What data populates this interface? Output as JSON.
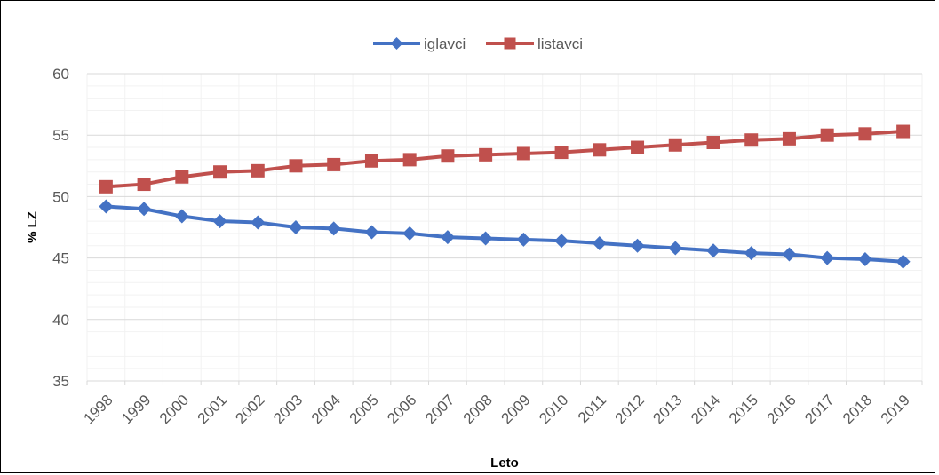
{
  "chart_data": {
    "type": "line",
    "title": "",
    "xlabel": "Leto",
    "ylabel": "% LZ",
    "ylim": [
      35,
      60
    ],
    "y_ticks": [
      35,
      40,
      45,
      50,
      55,
      60
    ],
    "minor_grid_step": 1,
    "grid": true,
    "legend_position": "top",
    "categories": [
      "1998",
      "1999",
      "2000",
      "2001",
      "2002",
      "2003",
      "2004",
      "2005",
      "2006",
      "2007",
      "2008",
      "2009",
      "2010",
      "2011",
      "2012",
      "2013",
      "2014",
      "2015",
      "2016",
      "2017",
      "2018",
      "2019"
    ],
    "series": [
      {
        "name": "iglavci",
        "color": "#4472C4",
        "marker": "diamond",
        "values": [
          49.2,
          49.0,
          48.4,
          48.0,
          47.9,
          47.5,
          47.4,
          47.1,
          47.0,
          46.7,
          46.6,
          46.5,
          46.4,
          46.2,
          46.0,
          45.8,
          45.6,
          45.4,
          45.3,
          45.0,
          44.9,
          44.7
        ]
      },
      {
        "name": "listavci",
        "color": "#C0504D",
        "marker": "square",
        "values": [
          50.8,
          51.0,
          51.6,
          52.0,
          52.1,
          52.5,
          52.6,
          52.9,
          53.0,
          53.3,
          53.4,
          53.5,
          53.6,
          53.8,
          54.0,
          54.2,
          54.4,
          54.6,
          54.7,
          55.0,
          55.1,
          55.3
        ]
      }
    ]
  }
}
